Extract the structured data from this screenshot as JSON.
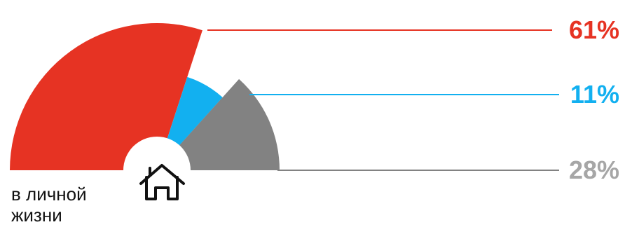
{
  "chart_data": {
    "type": "polar-area",
    "caption_lines": [
      "в личной",
      "жизни"
    ],
    "icon": "house-icon",
    "series": [
      {
        "label": "61%",
        "value": 61,
        "color": "#e63323"
      },
      {
        "label": "11%",
        "value": 11,
        "color": "#12b0f0"
      },
      {
        "label": "28%",
        "value": 28,
        "color": "#828282"
      }
    ],
    "label_colors": [
      "#e63323",
      "#12b0f0",
      "#a6a6a6"
    ]
  }
}
